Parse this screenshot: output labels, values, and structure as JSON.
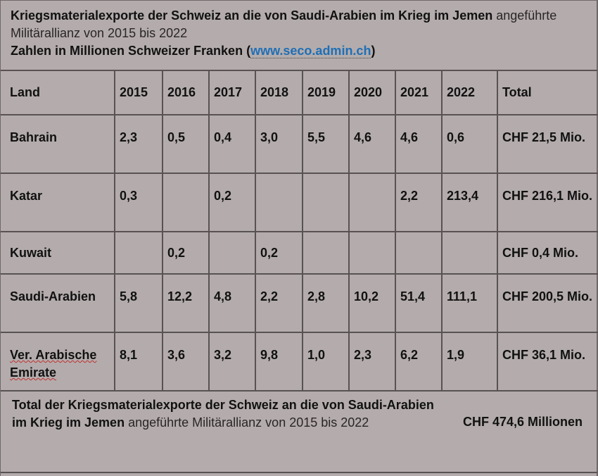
{
  "header": {
    "line1_bold": "Kriegsmaterialexporte der Schweiz an die von Saudi-Arabien im Krieg im Jemen",
    "line1_light": "angeführte",
    "line2_light": "Militärallianz von 2015 bis 2022",
    "line3_pre": "Zahlen in Millionen Schweizer Franken (",
    "link": "www.seco.admin.ch",
    "line3_post": ")"
  },
  "table": {
    "columns": [
      "Land",
      "2015",
      "2016",
      "2017",
      "2018",
      "2019",
      "2020",
      "2021",
      "2022",
      "Total"
    ],
    "rows": [
      {
        "land": "Bahrain",
        "v2015": "2,3",
        "v2016": "0,5",
        "v2017": "0,4",
        "v2018": "3,0",
        "v2019": "5,5",
        "v2020": "4,6",
        "v2021": "4,6",
        "v2022": "0,6",
        "total": "CHF 21,5 Mio."
      },
      {
        "land": "Katar",
        "v2015": "0,3",
        "v2016": "",
        "v2017": "0,2",
        "v2018": "",
        "v2019": "",
        "v2020": "",
        "v2021": "2,2",
        "v2022": "213,4",
        "total": "CHF 216,1 Mio."
      },
      {
        "land": "Kuwait",
        "v2015": "",
        "v2016": "0,2",
        "v2017": "",
        "v2018": "0,2",
        "v2019": "",
        "v2020": "",
        "v2021": "",
        "v2022": "",
        "total": "CHF 0,4 Mio."
      },
      {
        "land": "Saudi-Arabien",
        "v2015": "5,8",
        "v2016": "12,2",
        "v2017": "4,8",
        "v2018": "2,2",
        "v2019": "2,8",
        "v2020": "10,2",
        "v2021": "51,4",
        "v2022": "111,1",
        "total": "CHF 200,5 Mio."
      },
      {
        "land": "Ver. Arabische Emirate",
        "v2015": "8,1",
        "v2016": "3,6",
        "v2017": "3,2",
        "v2018": "9,8",
        "v2019": "1,0",
        "v2020": "2,3",
        "v2021": "6,2",
        "v2022": "1,9",
        "total": "CHF 36,1 Mio."
      }
    ]
  },
  "footer": {
    "line1": "Total der Kriegsmaterialexporte der Schweiz an die von Saudi-Arabien",
    "line2_bold": "im Krieg im Jemen",
    "line2_light": "angeführte Militärallianz von 2015 bis  2022",
    "total": "CHF 474,6 Millionen"
  },
  "colors": {
    "background": "#b4acac",
    "link": "#1f6fb6",
    "grid": "#585252"
  }
}
